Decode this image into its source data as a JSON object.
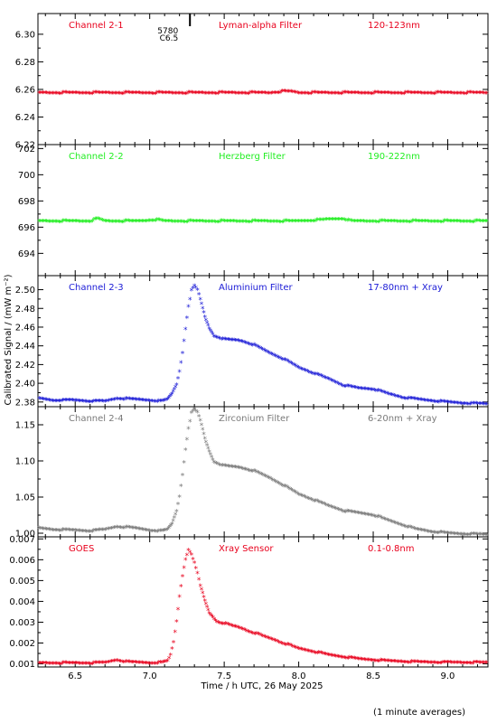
{
  "chart_data": {
    "type": "scatter",
    "xlabel": "Time / h UTC, 26 May 2025",
    "ylabel": "Calibrated Signal / (mW m⁻²)",
    "footnote": "(1 minute averages)",
    "xlim": [
      6.25,
      9.27
    ],
    "xticks": [
      6.5,
      7.0,
      7.5,
      8.0,
      8.5,
      9.0
    ],
    "xtick_labels": [
      "6.5",
      "7.0",
      "7.5",
      "8.0",
      "8.5",
      "9.0"
    ],
    "panels": [
      {
        "channel": "Channel 2-1",
        "filter": "Lyman-alpha Filter",
        "band": "120-123nm",
        "color": "#e8001c",
        "ylim": [
          6.22,
          6.315
        ],
        "yticks": [
          6.22,
          6.24,
          6.26,
          6.28,
          6.3
        ],
        "ytick_labels": [
          "6.22",
          "6.24",
          "6.26",
          "6.28",
          "6.30"
        ],
        "annotation": [
          "5780",
          "C6.5"
        ],
        "annotation_x": 7.27,
        "points": [
          [
            6.25,
            6.257
          ],
          [
            6.4,
            6.257
          ],
          [
            6.6,
            6.257
          ],
          [
            6.8,
            6.257
          ],
          [
            7.0,
            6.257
          ],
          [
            7.2,
            6.257
          ],
          [
            7.4,
            6.257
          ],
          [
            7.6,
            6.257
          ],
          [
            7.8,
            6.257
          ],
          [
            7.9,
            6.258
          ],
          [
            7.95,
            6.258
          ],
          [
            8.0,
            6.257
          ],
          [
            8.2,
            6.257
          ],
          [
            8.4,
            6.257
          ],
          [
            8.6,
            6.257
          ],
          [
            8.8,
            6.257
          ],
          [
            9.0,
            6.257
          ],
          [
            9.27,
            6.257
          ]
        ]
      },
      {
        "channel": "Channel 2-2",
        "filter": "Herzberg Filter",
        "band": "190-222nm",
        "color": "#22ee22",
        "ylim": [
          692.3,
          702.3
        ],
        "yticks": [
          694,
          696,
          698,
          700,
          702
        ],
        "ytick_labels": [
          "694",
          "696",
          "698",
          "700",
          "702"
        ],
        "points": [
          [
            6.25,
            696.4
          ],
          [
            6.4,
            696.4
          ],
          [
            6.6,
            696.4
          ],
          [
            6.65,
            696.6
          ],
          [
            6.7,
            696.4
          ],
          [
            6.9,
            696.4
          ],
          [
            7.05,
            696.5
          ],
          [
            7.1,
            696.4
          ],
          [
            7.4,
            696.4
          ],
          [
            7.7,
            696.4
          ],
          [
            8.0,
            696.4
          ],
          [
            8.3,
            696.6
          ],
          [
            8.35,
            696.4
          ],
          [
            8.6,
            696.4
          ],
          [
            8.9,
            696.4
          ],
          [
            9.27,
            696.4
          ]
        ]
      },
      {
        "channel": "Channel 2-3",
        "filter": "Aluminium Filter",
        "band": "17-80nm + Xray",
        "color": "#1a1ad6",
        "ylim": [
          2.375,
          2.515
        ],
        "yticks": [
          2.38,
          2.4,
          2.42,
          2.44,
          2.46,
          2.48,
          2.5
        ],
        "ytick_labels": [
          "2.38",
          "2.40",
          "2.42",
          "2.44",
          "2.46",
          "2.48",
          "2.50"
        ],
        "points": [
          [
            6.25,
            2.383
          ],
          [
            6.35,
            2.381
          ],
          [
            6.5,
            2.381
          ],
          [
            6.6,
            2.38
          ],
          [
            6.7,
            2.38
          ],
          [
            6.78,
            2.383
          ],
          [
            6.9,
            2.382
          ],
          [
            7.0,
            2.381
          ],
          [
            7.08,
            2.38
          ],
          [
            7.12,
            2.382
          ],
          [
            7.15,
            2.388
          ],
          [
            7.18,
            2.398
          ],
          [
            7.2,
            2.412
          ],
          [
            7.22,
            2.432
          ],
          [
            7.24,
            2.458
          ],
          [
            7.26,
            2.482
          ],
          [
            7.28,
            2.498
          ],
          [
            7.3,
            2.503
          ],
          [
            7.32,
            2.499
          ],
          [
            7.34,
            2.489
          ],
          [
            7.37,
            2.47
          ],
          [
            7.4,
            2.458
          ],
          [
            7.43,
            2.45
          ],
          [
            7.5,
            2.446
          ],
          [
            7.6,
            2.445
          ],
          [
            7.7,
            2.44
          ],
          [
            7.8,
            2.432
          ],
          [
            7.9,
            2.425
          ],
          [
            8.0,
            2.416
          ],
          [
            8.1,
            2.41
          ],
          [
            8.2,
            2.404
          ],
          [
            8.3,
            2.397
          ],
          [
            8.4,
            2.394
          ],
          [
            8.5,
            2.393
          ],
          [
            8.6,
            2.388
          ],
          [
            8.7,
            2.384
          ],
          [
            8.8,
            2.382
          ],
          [
            9.0,
            2.379
          ],
          [
            9.1,
            2.378
          ],
          [
            9.27,
            2.377
          ]
        ]
      },
      {
        "channel": "Channel 2-4",
        "filter": "Zirconium Filter",
        "band": "6-20nm + Xray",
        "color": "#7a7a7a",
        "ylim": [
          0.995,
          1.175
        ],
        "yticks": [
          1.0,
          1.05,
          1.1,
          1.15
        ],
        "ytick_labels": [
          "1.00",
          "1.05",
          "1.10",
          "1.15"
        ],
        "points": [
          [
            6.25,
            1.006
          ],
          [
            6.35,
            1.004
          ],
          [
            6.5,
            1.003
          ],
          [
            6.6,
            1.002
          ],
          [
            6.7,
            1.004
          ],
          [
            6.78,
            1.008
          ],
          [
            6.9,
            1.006
          ],
          [
            7.0,
            1.003
          ],
          [
            7.08,
            1.002
          ],
          [
            7.12,
            1.004
          ],
          [
            7.15,
            1.012
          ],
          [
            7.18,
            1.03
          ],
          [
            7.2,
            1.05
          ],
          [
            7.22,
            1.08
          ],
          [
            7.24,
            1.115
          ],
          [
            7.26,
            1.145
          ],
          [
            7.28,
            1.165
          ],
          [
            7.3,
            1.17
          ],
          [
            7.32,
            1.166
          ],
          [
            7.34,
            1.155
          ],
          [
            7.37,
            1.13
          ],
          [
            7.4,
            1.112
          ],
          [
            7.43,
            1.098
          ],
          [
            7.5,
            1.092
          ],
          [
            7.6,
            1.09
          ],
          [
            7.7,
            1.085
          ],
          [
            7.8,
            1.076
          ],
          [
            7.9,
            1.065
          ],
          [
            8.0,
            1.053
          ],
          [
            8.1,
            1.045
          ],
          [
            8.2,
            1.037
          ],
          [
            8.3,
            1.03
          ],
          [
            8.4,
            1.027
          ],
          [
            8.5,
            1.024
          ],
          [
            8.6,
            1.017
          ],
          [
            8.7,
            1.01
          ],
          [
            8.8,
            1.004
          ],
          [
            8.9,
            1.001
          ],
          [
            9.0,
            0.999
          ],
          [
            9.1,
            0.998
          ],
          [
            9.27,
            0.997
          ]
        ]
      },
      {
        "channel": "GOES",
        "filter": "Xray Sensor",
        "band": "0.1-0.8nm",
        "color": "#e8001c",
        "ylim": [
          0.00085,
          0.0071
        ],
        "yticks": [
          0.001,
          0.002,
          0.003,
          0.004,
          0.005,
          0.006,
          0.007
        ],
        "ytick_labels": [
          "0.001",
          "0.002",
          "0.003",
          "0.004",
          "0.005",
          "0.006",
          "0.007"
        ],
        "points": [
          [
            6.25,
            0.001
          ],
          [
            6.4,
            0.001
          ],
          [
            6.5,
            0.001
          ],
          [
            6.6,
            0.001
          ],
          [
            6.7,
            0.00102
          ],
          [
            6.78,
            0.00115
          ],
          [
            6.85,
            0.00105
          ],
          [
            7.0,
            0.00101
          ],
          [
            7.08,
            0.00102
          ],
          [
            7.12,
            0.0011
          ],
          [
            7.14,
            0.0014
          ],
          [
            7.16,
            0.002
          ],
          [
            7.18,
            0.003
          ],
          [
            7.2,
            0.0042
          ],
          [
            7.22,
            0.0052
          ],
          [
            7.24,
            0.006
          ],
          [
            7.26,
            0.00645
          ],
          [
            7.28,
            0.00625
          ],
          [
            7.3,
            0.0058
          ],
          [
            7.32,
            0.0053
          ],
          [
            7.34,
            0.0047
          ],
          [
            7.37,
            0.004
          ],
          [
            7.4,
            0.0034
          ],
          [
            7.45,
            0.003
          ],
          [
            7.5,
            0.0029
          ],
          [
            7.6,
            0.0027
          ],
          [
            7.7,
            0.00245
          ],
          [
            7.8,
            0.0022
          ],
          [
            7.9,
            0.00195
          ],
          [
            8.0,
            0.0017
          ],
          [
            8.1,
            0.00155
          ],
          [
            8.2,
            0.0014
          ],
          [
            8.3,
            0.0013
          ],
          [
            8.4,
            0.0012
          ],
          [
            8.5,
            0.00115
          ],
          [
            8.6,
            0.0011
          ],
          [
            8.8,
            0.00105
          ],
          [
            9.0,
            0.00103
          ],
          [
            9.27,
            0.00102
          ]
        ]
      }
    ]
  }
}
